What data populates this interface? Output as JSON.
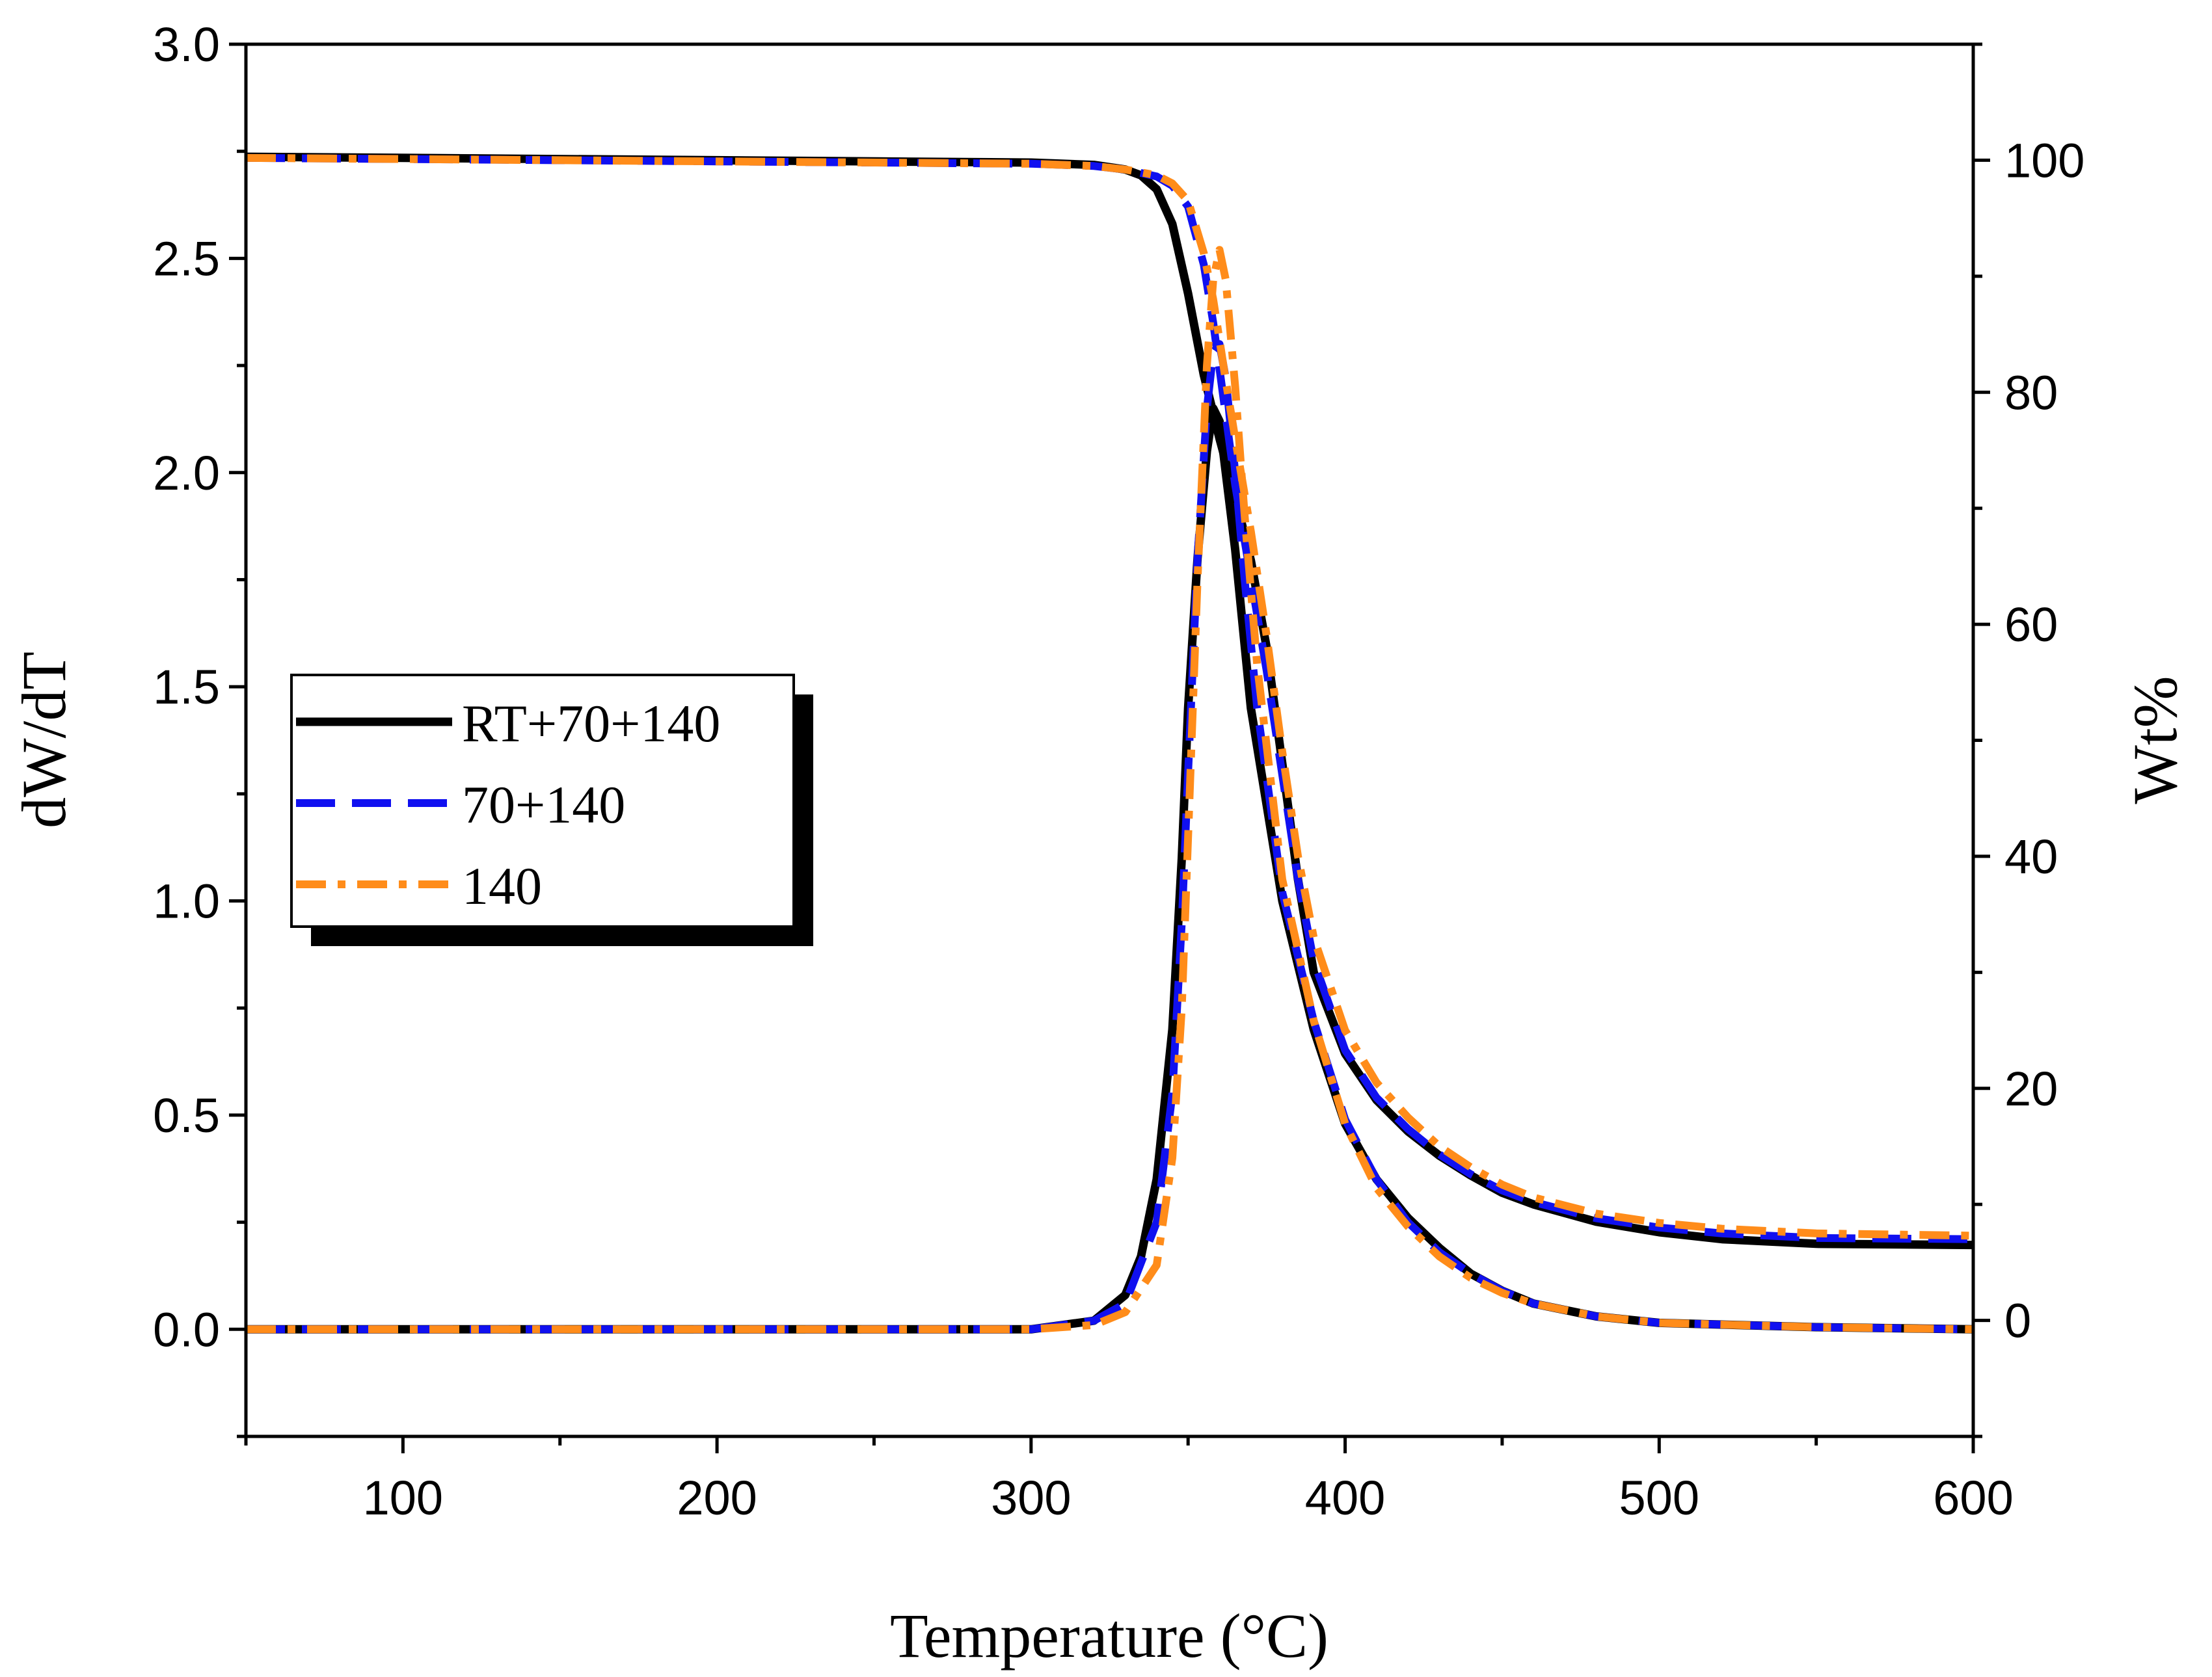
{
  "chart_data": {
    "type": "line",
    "title": "",
    "xlabel": "Temperature (°C)",
    "ylabel_left": "dW/dT",
    "ylabel_right": "Wt%",
    "xlim": [
      50,
      600
    ],
    "ylim_left": [
      -0.25,
      3.0
    ],
    "ylim_right": [
      -10,
      110
    ],
    "x_ticks": [
      100,
      200,
      300,
      400,
      500,
      600
    ],
    "y_left_ticks": [
      "0.0",
      "0.5",
      "1.0",
      "1.5",
      "2.0",
      "2.5",
      "3.0"
    ],
    "y_right_ticks": [
      "0",
      "20",
      "40",
      "60",
      "80",
      "100"
    ],
    "grid": false,
    "legend_position": "middle-left",
    "series": [
      {
        "name": "RT+70+140",
        "color": "#000000",
        "dash": "solid",
        "wt_percent": {
          "x": [
            50,
            100,
            200,
            300,
            320,
            330,
            335,
            340,
            345,
            350,
            355,
            360,
            365,
            370,
            375,
            380,
            385,
            390,
            400,
            410,
            420,
            430,
            440,
            450,
            460,
            480,
            500,
            520,
            550,
            600
          ],
          "y": [
            100.3,
            100.2,
            100.0,
            99.8,
            99.6,
            99.2,
            98.7,
            97.5,
            94.5,
            88.5,
            81.5,
            76.0,
            71.0,
            65.5,
            58.0,
            48.0,
            38.0,
            30.0,
            23.0,
            19.0,
            16.3,
            14.2,
            12.5,
            11.0,
            10.0,
            8.5,
            7.6,
            7.0,
            6.6,
            6.5
          ]
        },
        "dwdt": {
          "x": [
            50,
            100,
            200,
            300,
            320,
            330,
            335,
            340,
            345,
            348,
            350,
            353,
            356,
            358,
            360,
            362,
            365,
            370,
            380,
            390,
            400,
            410,
            420,
            430,
            440,
            450,
            460,
            480,
            500,
            550,
            600
          ],
          "y": [
            0.0,
            0.0,
            0.0,
            0.0,
            0.02,
            0.08,
            0.17,
            0.35,
            0.7,
            1.1,
            1.45,
            1.8,
            2.05,
            2.15,
            2.12,
            2.0,
            1.82,
            1.45,
            1.0,
            0.7,
            0.48,
            0.35,
            0.26,
            0.19,
            0.13,
            0.09,
            0.06,
            0.03,
            0.015,
            0.005,
            0.0
          ]
        }
      },
      {
        "name": "70+140",
        "color": "#1010f0",
        "dash": "dashed",
        "wt_percent": {
          "x": [
            50,
            100,
            200,
            300,
            320,
            330,
            340,
            345,
            350,
            355,
            358,
            360,
            362,
            365,
            370,
            375,
            380,
            385,
            390,
            400,
            410,
            420,
            430,
            440,
            450,
            460,
            480,
            500,
            520,
            550,
            600
          ],
          "y": [
            100.2,
            100.1,
            99.9,
            99.7,
            99.5,
            99.2,
            98.6,
            97.8,
            96.0,
            91.0,
            86.0,
            82.0,
            78.0,
            72.0,
            64.0,
            56.0,
            47.0,
            38.0,
            31.0,
            23.3,
            19.2,
            16.5,
            14.3,
            12.6,
            11.2,
            10.2,
            8.8,
            8.0,
            7.5,
            7.1,
            7.0
          ]
        },
        "dwdt": {
          "x": [
            50,
            100,
            200,
            300,
            320,
            330,
            340,
            345,
            348,
            350,
            353,
            356,
            358,
            360,
            362,
            365,
            368,
            372,
            380,
            390,
            400,
            410,
            420,
            430,
            440,
            450,
            460,
            480,
            500,
            550,
            600
          ],
          "y": [
            0.0,
            0.0,
            0.0,
            0.0,
            0.02,
            0.06,
            0.25,
            0.55,
            0.95,
            1.3,
            1.8,
            2.15,
            2.28,
            2.3,
            2.22,
            2.0,
            1.75,
            1.45,
            1.02,
            0.72,
            0.49,
            0.35,
            0.25,
            0.18,
            0.13,
            0.09,
            0.06,
            0.03,
            0.015,
            0.005,
            0.0
          ]
        }
      },
      {
        "name": "140",
        "color": "#ff8c1a",
        "dash": "dash-dot",
        "wt_percent": {
          "x": [
            50,
            100,
            200,
            300,
            320,
            330,
            340,
            345,
            350,
            355,
            358,
            360,
            362,
            365,
            370,
            375,
            380,
            385,
            390,
            400,
            410,
            420,
            430,
            440,
            450,
            460,
            480,
            500,
            520,
            550,
            600
          ],
          "y": [
            100.2,
            100.1,
            99.9,
            99.7,
            99.5,
            99.2,
            98.7,
            98.0,
            96.5,
            92.0,
            88.0,
            84.5,
            81.0,
            76.0,
            68.0,
            59.0,
            49.0,
            40.0,
            33.0,
            25.0,
            20.5,
            17.5,
            15.0,
            13.2,
            11.7,
            10.6,
            9.2,
            8.4,
            7.9,
            7.5,
            7.3
          ]
        },
        "dwdt": {
          "x": [
            50,
            100,
            200,
            300,
            320,
            330,
            340,
            345,
            348,
            350,
            353,
            356,
            358,
            360,
            362,
            365,
            368,
            372,
            380,
            390,
            400,
            410,
            420,
            430,
            440,
            450,
            460,
            480,
            500,
            550,
            600
          ],
          "y": [
            0.0,
            0.0,
            0.0,
            0.0,
            0.01,
            0.04,
            0.15,
            0.4,
            0.75,
            1.15,
            1.75,
            2.25,
            2.45,
            2.52,
            2.45,
            2.2,
            1.9,
            1.55,
            1.05,
            0.72,
            0.48,
            0.33,
            0.24,
            0.17,
            0.12,
            0.085,
            0.06,
            0.03,
            0.015,
            0.005,
            0.0
          ]
        }
      }
    ]
  }
}
